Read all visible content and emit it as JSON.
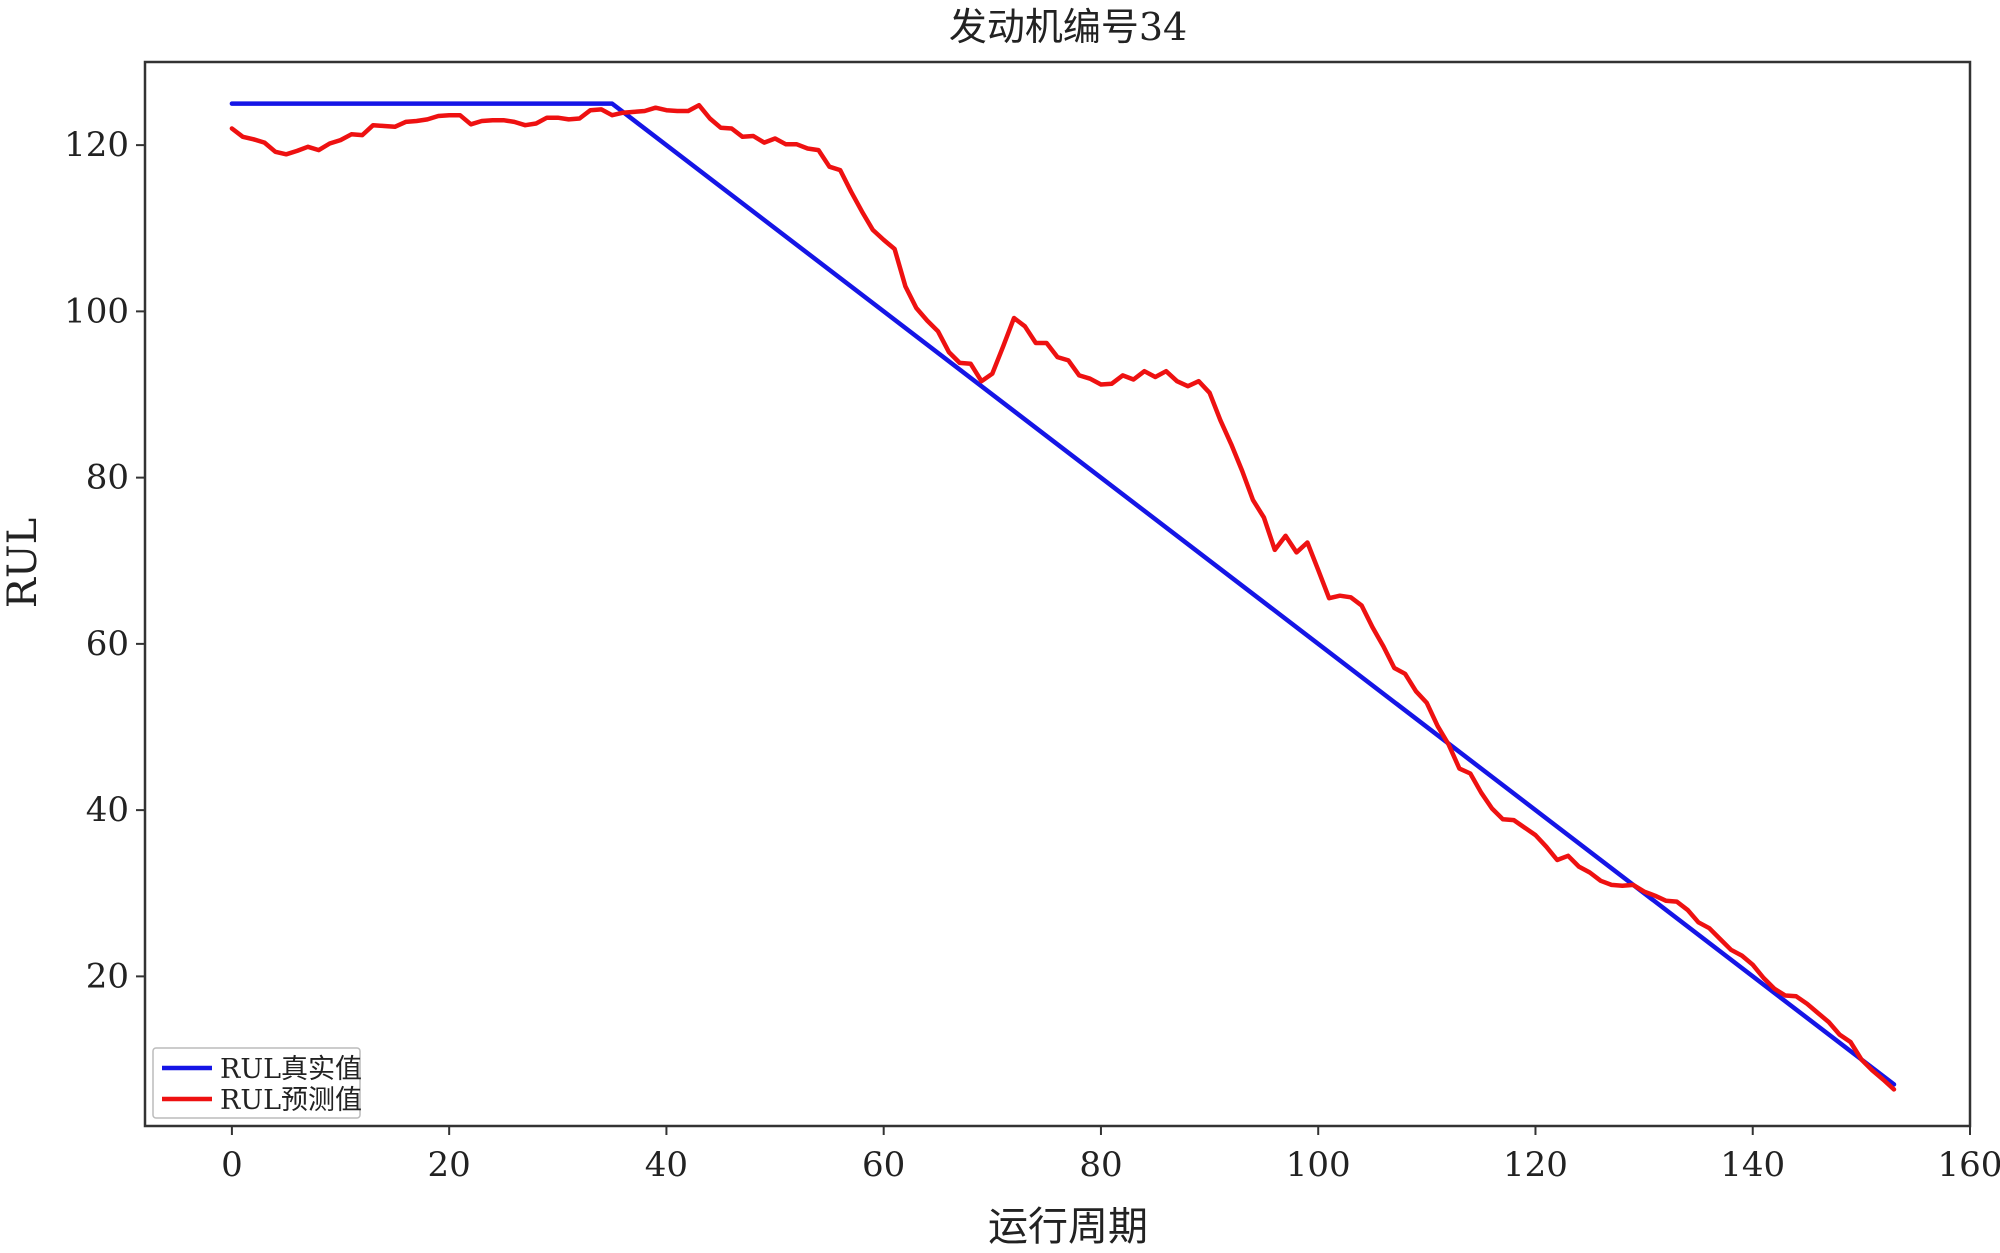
{
  "chart_data": {
    "type": "line",
    "title": "发动机编号34",
    "xlabel": "运行周期",
    "ylabel": "RUL",
    "xlim": [
      -8,
      160
    ],
    "ylim": [
      2,
      130
    ],
    "xticks": [
      0,
      20,
      40,
      60,
      80,
      100,
      120,
      140,
      160
    ],
    "yticks": [
      20,
      40,
      60,
      80,
      100,
      120
    ],
    "grid": false,
    "legend_position": "bottom-left",
    "series": [
      {
        "name": "RUL真实值",
        "color": "#1515e6",
        "x": [
          0,
          35,
          153
        ],
        "y": [
          125,
          125,
          7
        ]
      },
      {
        "name": "RUL预测值",
        "color": "#ee1111",
        "x": [
          0,
          1,
          2,
          3,
          4,
          5,
          6,
          7,
          8,
          9,
          10,
          11,
          12,
          13,
          14,
          15,
          16,
          17,
          18,
          19,
          20,
          21,
          22,
          23,
          24,
          25,
          26,
          27,
          28,
          29,
          30,
          31,
          32,
          33,
          34,
          35,
          36,
          37,
          38,
          39,
          40,
          41,
          42,
          43,
          44,
          45,
          46,
          47,
          48,
          49,
          50,
          51,
          52,
          53,
          54,
          55,
          56,
          57,
          58,
          59,
          60,
          61,
          62,
          63,
          64,
          65,
          66,
          67,
          68,
          69,
          70,
          71,
          72,
          73,
          74,
          75,
          76,
          77,
          78,
          79,
          80,
          81,
          82,
          83,
          84,
          85,
          86,
          87,
          88,
          89,
          90,
          91,
          92,
          93,
          94,
          95,
          96,
          97,
          98,
          99,
          100,
          101,
          102,
          103,
          104,
          105,
          106,
          107,
          108,
          109,
          110,
          111,
          112,
          113,
          114,
          115,
          116,
          117,
          118,
          119,
          120,
          121,
          122,
          123,
          124,
          125,
          126,
          127,
          128,
          129,
          130,
          131,
          132,
          133,
          134,
          135,
          136,
          137,
          138,
          139,
          140,
          141,
          142,
          143,
          144,
          145,
          146,
          147,
          148,
          149,
          150,
          151,
          152,
          153
        ],
        "y": [
          122,
          121,
          120.7,
          120.3,
          119.2,
          118.9,
          119.3,
          119.8,
          119.4,
          120.2,
          120.6,
          121.3,
          121.2,
          122.4,
          122.3,
          122.2,
          122.8,
          122.9,
          123.1,
          123.5,
          123.6,
          123.6,
          122.5,
          122.9,
          123,
          123,
          122.8,
          122.4,
          122.6,
          123.3,
          123.3,
          123.1,
          123.2,
          124.2,
          124.3,
          123.6,
          123.9,
          124,
          124.1,
          124.5,
          124.2,
          124.1,
          124.1,
          124.8,
          123.2,
          122.1,
          122,
          121,
          121.1,
          120.3,
          120.8,
          120.1,
          120.1,
          119.6,
          119.4,
          117.4,
          117,
          114.4,
          112,
          109.8,
          108.6,
          107.5,
          103,
          100.4,
          98.9,
          97.6,
          95.1,
          93.8,
          93.7,
          91.6,
          92.5,
          95.8,
          99.2,
          98.2,
          96.2,
          96.2,
          94.5,
          94.1,
          92.3,
          91.9,
          91.2,
          91.3,
          92.3,
          91.8,
          92.8,
          92.1,
          92.8,
          91.6,
          91,
          91.6,
          90.2,
          86.9,
          84,
          80.8,
          77.3,
          75.2,
          71.3,
          73,
          71,
          72.2,
          68.9,
          65.5,
          65.8,
          65.6,
          64.6,
          62,
          59.7,
          57.1,
          56.4,
          54.3,
          52.9,
          50.1,
          47.9,
          45,
          44.4,
          42.1,
          40.2,
          38.9,
          38.8,
          37.9,
          37,
          35.6,
          34,
          34.5,
          33.2,
          32.5,
          31.5,
          31,
          30.9,
          31,
          30.2,
          29.7,
          29.1,
          29,
          28,
          26.5,
          25.8,
          24.5,
          23.2,
          22.5,
          21.4,
          19.8,
          18.5,
          17.7,
          17.6,
          16.7,
          15.6,
          14.5,
          13,
          12.1,
          10,
          8.7,
          7.6,
          6.4
        ]
      }
    ]
  }
}
